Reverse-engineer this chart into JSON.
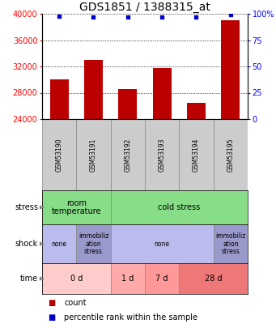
{
  "title": "GDS1851 / 1388315_at",
  "samples": [
    "GSM53190",
    "GSM53191",
    "GSM53192",
    "GSM53193",
    "GSM53194",
    "GSM53195"
  ],
  "counts": [
    30000,
    33000,
    28500,
    31800,
    26500,
    39000
  ],
  "percentile": [
    98,
    97,
    97,
    97,
    97,
    99
  ],
  "ymin": 24000,
  "ymax": 40000,
  "yticks_left": [
    24000,
    28000,
    32000,
    36000,
    40000
  ],
  "yticks_right": [
    0,
    25,
    50,
    75,
    100
  ],
  "bar_color": "#bb0000",
  "dot_color": "#0000cc",
  "stress_row": [
    {
      "label": "room\ntemperature",
      "span": [
        0,
        2
      ],
      "color": "#88dd88"
    },
    {
      "label": "cold stress",
      "span": [
        2,
        6
      ],
      "color": "#88dd88"
    }
  ],
  "shock_row": [
    {
      "label": "none",
      "span": [
        0,
        1
      ],
      "color": "#bbbbee"
    },
    {
      "label": "immobiliz\nation\nstress",
      "span": [
        1,
        2
      ],
      "color": "#9999cc"
    },
    {
      "label": "none",
      "span": [
        2,
        5
      ],
      "color": "#bbbbee"
    },
    {
      "label": "immobiliz\nation\nstress",
      "span": [
        5,
        6
      ],
      "color": "#9999cc"
    }
  ],
  "time_row": [
    {
      "label": "0 d",
      "span": [
        0,
        2
      ],
      "color": "#ffcccc"
    },
    {
      "label": "1 d",
      "span": [
        2,
        3
      ],
      "color": "#ffaaaa"
    },
    {
      "label": "7 d",
      "span": [
        3,
        4
      ],
      "color": "#ff9999"
    },
    {
      "label": "28 d",
      "span": [
        4,
        6
      ],
      "color": "#ee7777"
    }
  ],
  "row_labels": [
    "stress",
    "shock",
    "time"
  ],
  "legend_count_label": "count",
  "legend_pct_label": "percentile rank within the sample",
  "title_fontsize": 10,
  "tick_fontsize": 7,
  "sample_fontsize": 5.5,
  "row_fontsize_stress": 7,
  "row_fontsize_shock": 5.5,
  "row_fontsize_time": 7,
  "row_label_fontsize": 7
}
